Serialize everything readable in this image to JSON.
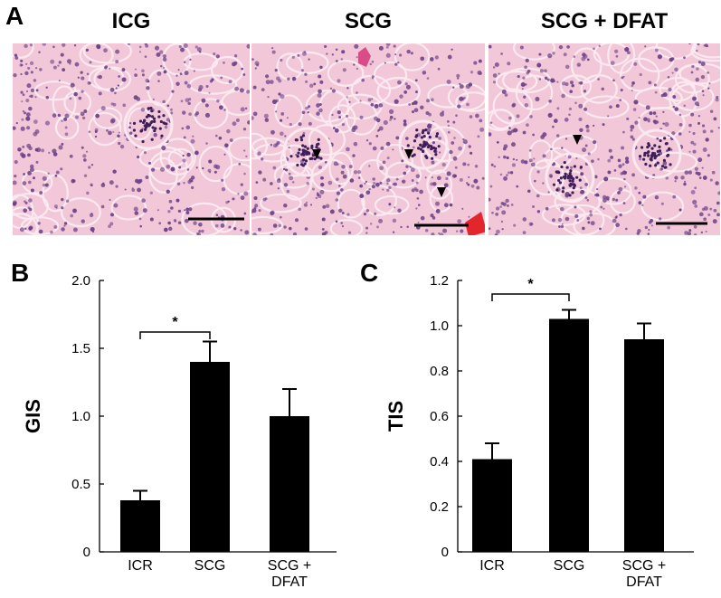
{
  "panel_a": {
    "letter": "A",
    "images": [
      {
        "title": "ICG",
        "has_arrowheads": false
      },
      {
        "title": "SCG",
        "has_arrowheads": true
      },
      {
        "title": "SCG + DFAT",
        "has_arrowheads": true
      }
    ],
    "colors": {
      "background": "#f2c7d8",
      "nuclei": "#6a3f86",
      "stain": "#d94c86",
      "scalebar": "#000000"
    }
  },
  "panel_b": {
    "letter": "B"
  },
  "panel_c": {
    "letter": "C"
  },
  "chart_data": [
    {
      "type": "bar",
      "categories": [
        "ICR",
        "SCG",
        "SCG + DFAT"
      ],
      "category_lines": [
        [
          "ICR"
        ],
        [
          "SCG"
        ],
        [
          "SCG +",
          "DFAT"
        ]
      ],
      "values": [
        0.38,
        1.4,
        1.0
      ],
      "errors": [
        0.07,
        0.15,
        0.2
      ],
      "ylabel": "GIS",
      "xlabel": "",
      "ylim": [
        0,
        2.0
      ],
      "yticks": [
        0,
        0.5,
        1.0,
        1.5,
        2.0
      ],
      "ytick_labels": [
        "0",
        "0.5",
        "1.0",
        "1.5",
        "2.0"
      ],
      "significance": {
        "from": 0,
        "to": 1,
        "label": "*",
        "bracket_y": 1.62
      },
      "bar_color": "#000000"
    },
    {
      "type": "bar",
      "categories": [
        "ICR",
        "SCG",
        "SCG + DFAT"
      ],
      "category_lines": [
        [
          "ICR"
        ],
        [
          "SCG"
        ],
        [
          "SCG +",
          "DFAT"
        ]
      ],
      "values": [
        0.41,
        1.03,
        0.94
      ],
      "errors": [
        0.07,
        0.04,
        0.07
      ],
      "ylabel": "TIS",
      "xlabel": "",
      "ylim": [
        0,
        1.2
      ],
      "yticks": [
        0,
        0.2,
        0.4,
        0.6,
        0.8,
        1.0,
        1.2
      ],
      "ytick_labels": [
        "0",
        "0.2",
        "0.4",
        "0.6",
        "0.8",
        "1.0",
        "1.2"
      ],
      "significance": {
        "from": 0,
        "to": 1,
        "label": "*",
        "bracket_y": 1.14
      },
      "bar_color": "#000000"
    }
  ]
}
